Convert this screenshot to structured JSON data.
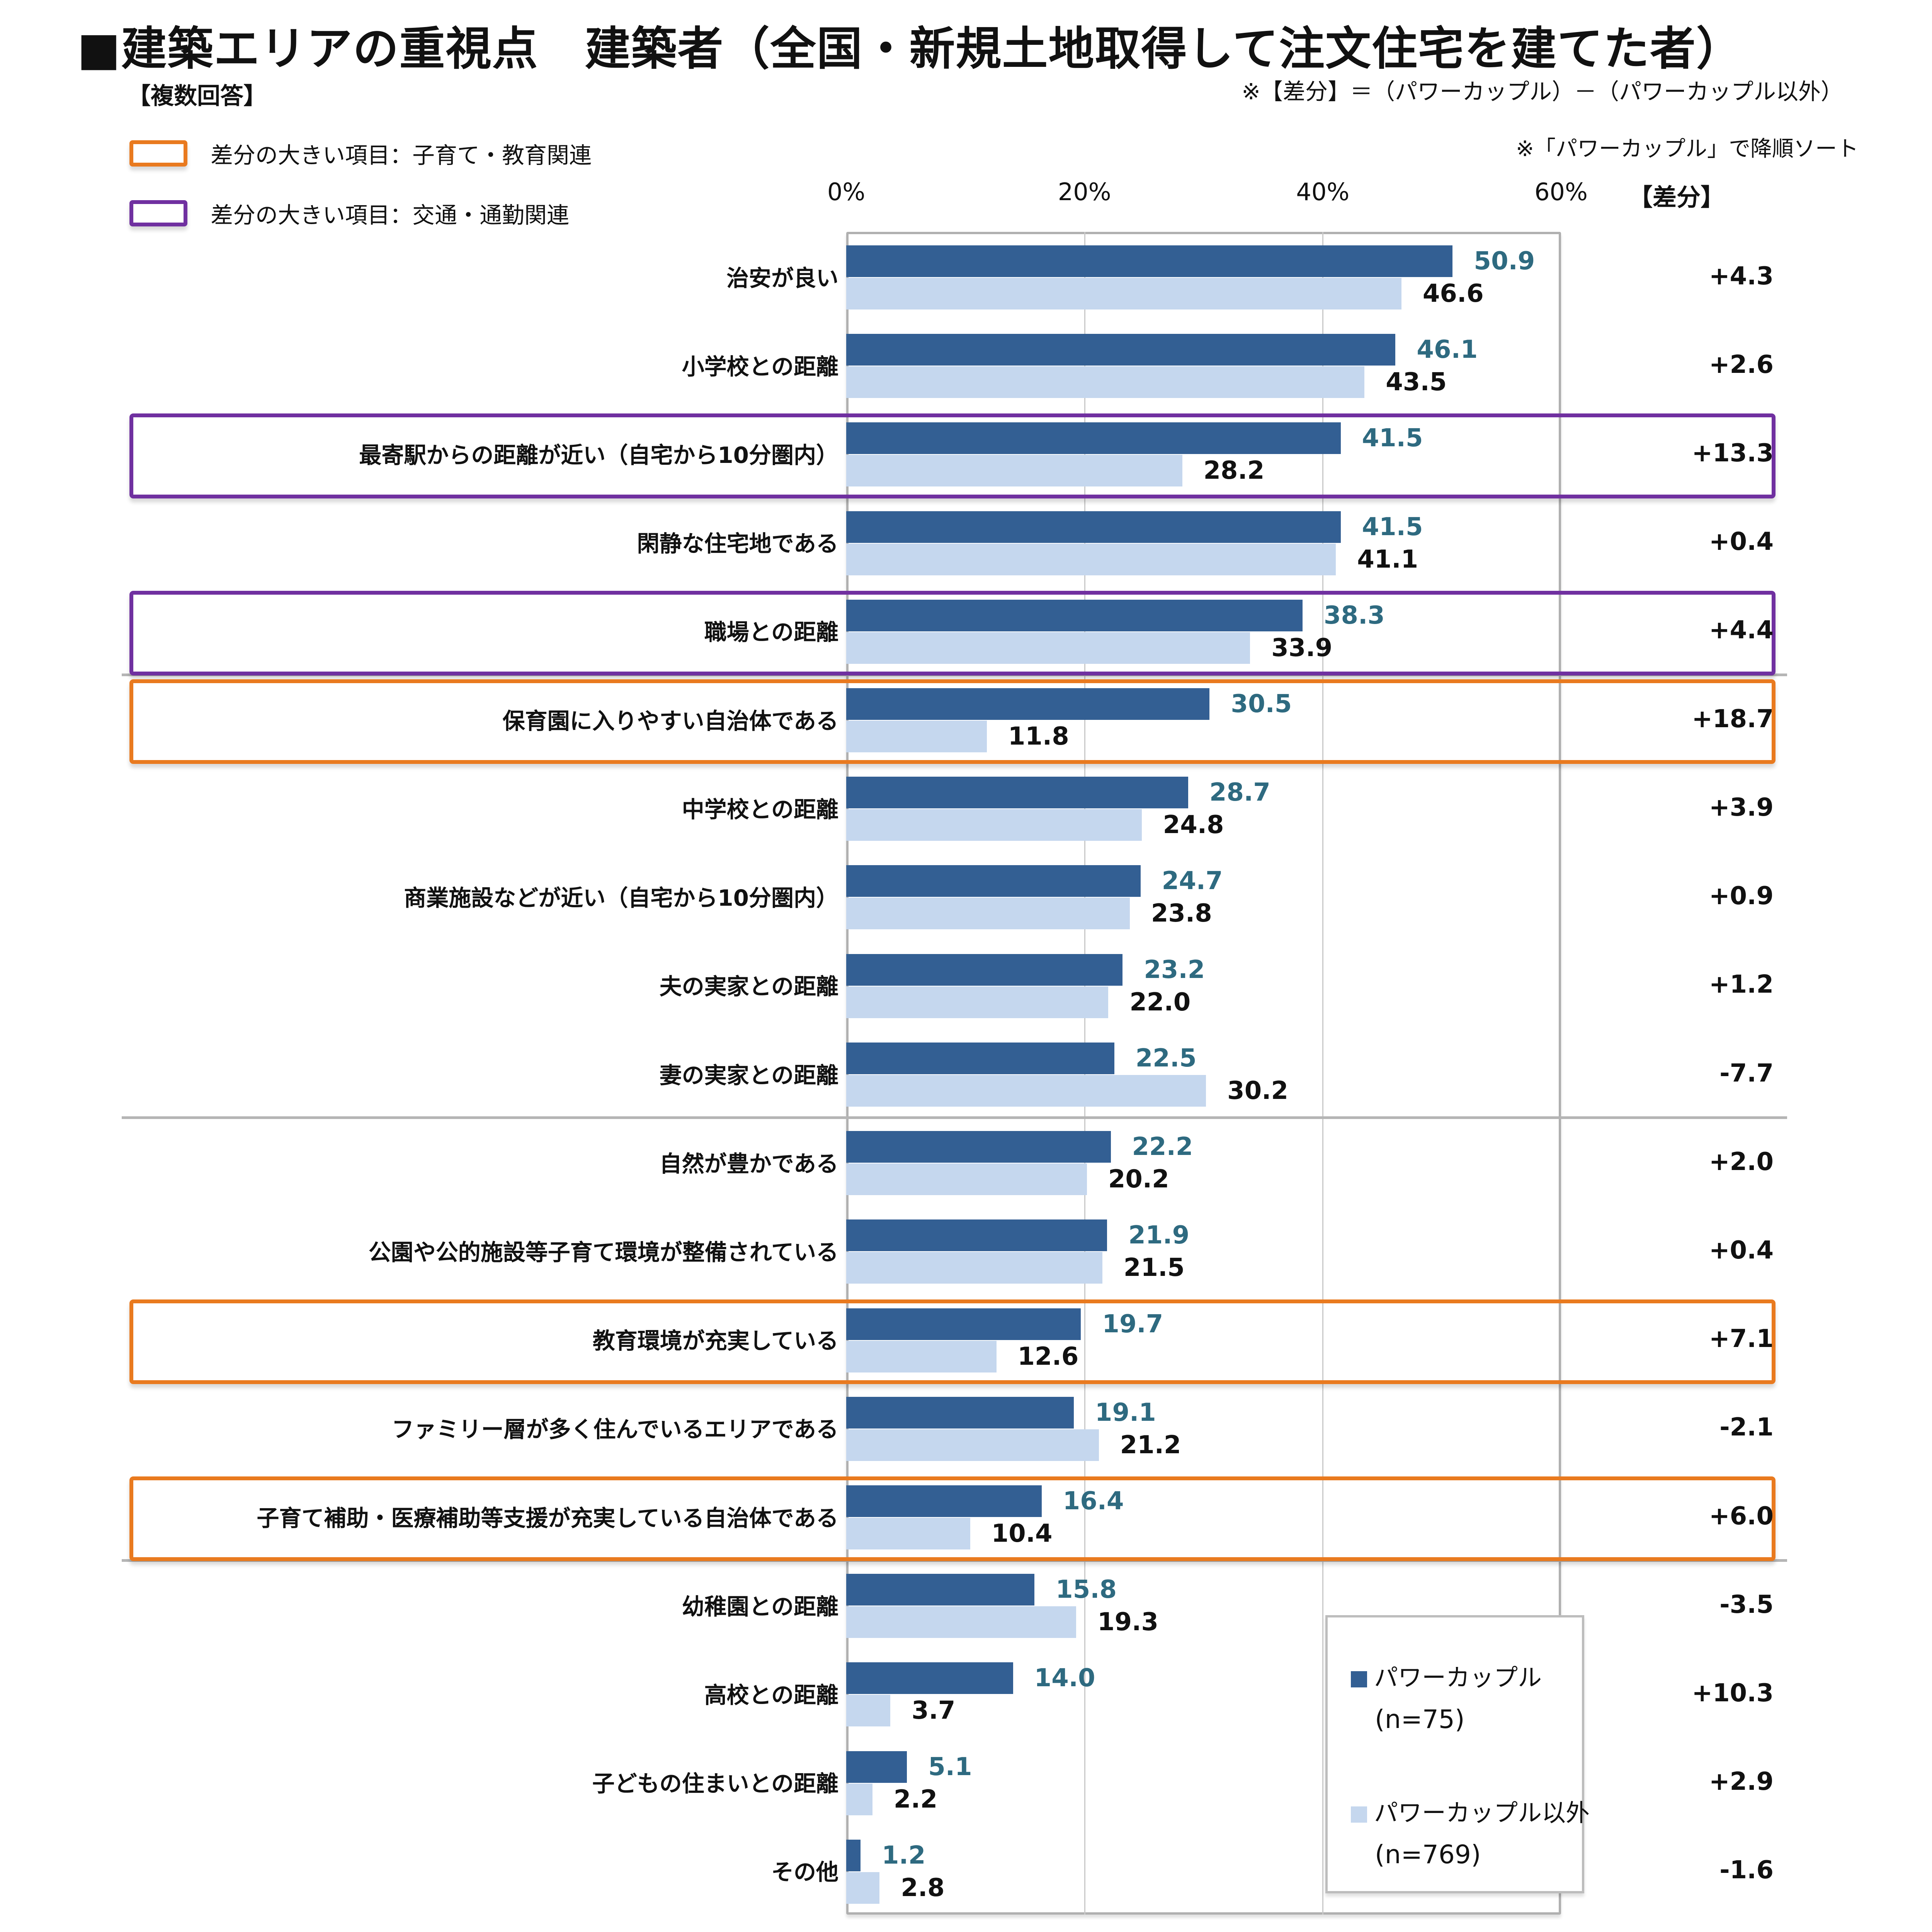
{
  "header": {
    "title": "■建築エリアの重視点　建築者（全国・新規土地取得して注文住宅を建てた者）",
    "multi_answer": "【複数回答】",
    "note_diff": "※【差分】＝（パワーカップル）－（パワーカップル以外）",
    "note_sort": "※「パワーカップル」で降順ソート"
  },
  "highlight_legend": [
    {
      "label": "差分の大きい項目：子育て・教育関連",
      "color": "#e97a1f"
    },
    {
      "label": "差分の大きい項目：交通・通勤関連",
      "color": "#7030a0"
    }
  ],
  "diff_header": "【差分】",
  "legend": {
    "items": [
      {
        "label": "パワーカップル",
        "n": "(n=75)",
        "color": "#335f93"
      },
      {
        "label": "パワーカップル以外",
        "n": "(n=769)",
        "color": "#c5d7ee"
      }
    ]
  },
  "chart_data": {
    "type": "bar",
    "orientation": "horizontal",
    "title": "■建築エリアの重視点　建築者（全国・新規土地取得して注文住宅を建てた者）",
    "xlabel": "",
    "ylabel": "",
    "xlim": [
      0,
      60
    ],
    "x_ticks": [
      "0%",
      "20%",
      "40%",
      "60%"
    ],
    "x_tick_values": [
      0,
      20,
      40,
      60
    ],
    "grid": true,
    "legend_position": "bottom-right",
    "categories": [
      "治安が良い",
      "小学校との距離",
      "最寄駅からの距離が近い（自宅から10分圏内）",
      "閑静な住宅地である",
      "職場との距離",
      "保育園に入りやすい自治体である",
      "中学校との距離",
      "商業施設などが近い（自宅から10分圏内）",
      "夫の実家との距離",
      "妻の実家との距離",
      "自然が豊かである",
      "公園や公的施設等子育て環境が整備されている",
      "教育環境が充実している",
      "ファミリー層が多く住んでいるエリアである",
      "子育て補助・医療補助等支援が充実している自治体である",
      "幼稚園との距離",
      "高校との距離",
      "子どもの住まいとの距離",
      "その他"
    ],
    "series": [
      {
        "name": "パワーカップル",
        "n": "(n=75)",
        "color": "#335f93",
        "values": [
          50.9,
          46.1,
          41.5,
          41.5,
          38.3,
          30.5,
          28.7,
          24.7,
          23.2,
          22.5,
          22.2,
          21.9,
          19.7,
          19.1,
          16.4,
          15.8,
          14.0,
          5.1,
          1.2
        ],
        "labels": [
          "50.9",
          "46.1",
          "41.5",
          "41.5",
          "38.3",
          "30.5",
          "28.7",
          "24.7",
          "23.2",
          "22.5",
          "22.2",
          "21.9",
          "19.7",
          "19.1",
          "16.4",
          "15.8",
          "14.0",
          "5.1",
          "1.2"
        ]
      },
      {
        "name": "パワーカップル以外",
        "n": "(n=769)",
        "color": "#c5d7ee",
        "values": [
          46.6,
          43.5,
          28.2,
          41.1,
          33.9,
          11.8,
          24.8,
          23.8,
          22.0,
          30.2,
          20.2,
          21.5,
          12.6,
          21.2,
          10.4,
          19.3,
          3.7,
          2.2,
          2.8
        ],
        "labels": [
          "46.6",
          "43.5",
          "28.2",
          "41.1",
          "33.9",
          "11.8",
          "24.8",
          "23.8",
          "22.0",
          "30.2",
          "20.2",
          "21.5",
          "12.6",
          "21.2",
          "10.4",
          "19.3",
          "3.7",
          "2.2",
          "2.8"
        ]
      }
    ],
    "diff": [
      "+4.3",
      "+2.6",
      "+13.3",
      "+0.4",
      "+4.4",
      "+18.7",
      "+3.9",
      "+0.9",
      "+1.2",
      "-7.7",
      "+2.0",
      "+0.4",
      "+7.1",
      "-2.1",
      "+6.0",
      "-3.5",
      "+10.3",
      "+2.9",
      "-1.6"
    ],
    "highlight_rows": [
      {
        "index": 2,
        "group": "交通・通勤関連",
        "color": "#7030a0"
      },
      {
        "index": 4,
        "group": "交通・通勤関連",
        "color": "#7030a0"
      },
      {
        "index": 5,
        "group": "子育て・教育関連",
        "color": "#e97a1f"
      },
      {
        "index": 12,
        "group": "子育て・教育関連",
        "color": "#e97a1f"
      },
      {
        "index": 14,
        "group": "子育て・教育関連",
        "color": "#e97a1f"
      }
    ],
    "separator_after_indices": [
      4,
      9,
      14
    ]
  }
}
